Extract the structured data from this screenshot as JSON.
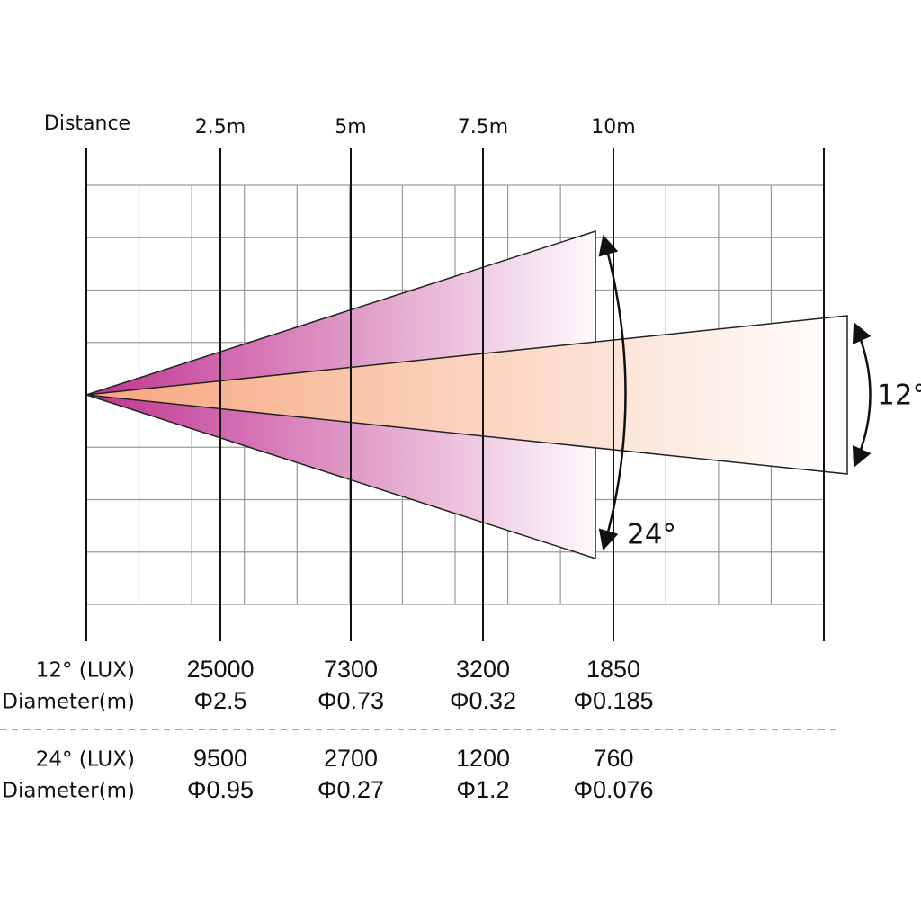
{
  "header": {
    "distance_label": "Distance",
    "distances": [
      "2.5m",
      "5m",
      "7.5m",
      "10m"
    ]
  },
  "beams": [
    {
      "angle_label": "24°"
    },
    {
      "angle_label": "12°"
    }
  ],
  "table": {
    "rows": [
      {
        "label": "12° (LUX)",
        "values": [
          25000,
          7300,
          3200,
          1850
        ]
      },
      {
        "label": "Diameter(m)",
        "values": [
          "Φ2.5",
          "Φ0.73",
          "Φ0.32",
          "Φ0.185"
        ]
      },
      {
        "label": "24° (LUX)",
        "values": [
          9500,
          2700,
          1200,
          760
        ]
      },
      {
        "label": "Diameter(m)",
        "values": [
          "Φ0.95",
          "Φ0.27",
          "Φ1.2",
          "Φ0.076"
        ]
      }
    ]
  }
}
